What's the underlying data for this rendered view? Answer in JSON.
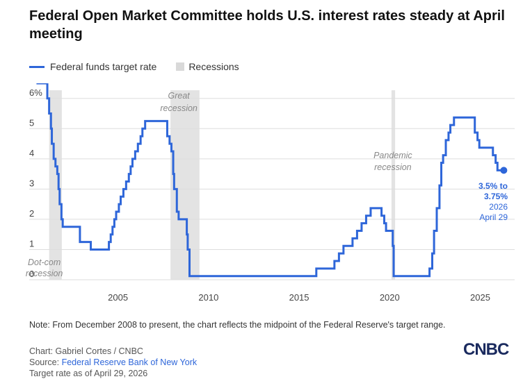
{
  "title": "Federal Open Market Committee holds U.S. interest rates steady at April meeting",
  "legend": {
    "series_label": "Federal funds target rate",
    "recession_label": "Recessions"
  },
  "colors": {
    "series": "#2e66d9",
    "recession": "#e3e3e3",
    "grid": "#dddddd"
  },
  "chart_data": {
    "type": "line",
    "series_name": "Federal funds target rate",
    "x_ticks": [
      2005,
      2010,
      2015,
      2020,
      2025
    ],
    "y_ticks": [
      0,
      1,
      2,
      3,
      4,
      5,
      6
    ],
    "y_tick_labels": [
      "0",
      "1",
      "2",
      "3",
      "4",
      "5",
      "6%"
    ],
    "xlim": [
      2000.1,
      2026.9
    ],
    "ylim": [
      0,
      6.5
    ],
    "grid": "horizontal",
    "legend_position": "top-left",
    "recessions": [
      {
        "start": 2001.2,
        "end": 2001.9,
        "label_lines": [
          "Dot-com",
          "recession"
        ],
        "label_position": "bottom"
      },
      {
        "start": 2007.9,
        "end": 2009.5,
        "label_lines": [
          "Great",
          "recession"
        ],
        "label_position": "top"
      },
      {
        "start": 2020.1,
        "end": 2020.3,
        "label_lines": [
          "Pandemic",
          "recession"
        ],
        "label_position": "middle"
      }
    ],
    "points": [
      [
        2000.5,
        6.5
      ],
      [
        2001.0,
        6.5
      ],
      [
        2001.1,
        6.0
      ],
      [
        2001.2,
        5.5
      ],
      [
        2001.3,
        5.0
      ],
      [
        2001.35,
        4.5
      ],
      [
        2001.45,
        4.0
      ],
      [
        2001.55,
        3.75
      ],
      [
        2001.65,
        3.5
      ],
      [
        2001.72,
        3.0
      ],
      [
        2001.78,
        2.5
      ],
      [
        2001.88,
        2.0
      ],
      [
        2001.95,
        1.75
      ],
      [
        2002.9,
        1.25
      ],
      [
        2003.5,
        1.0
      ],
      [
        2004.5,
        1.25
      ],
      [
        2004.6,
        1.5
      ],
      [
        2004.7,
        1.75
      ],
      [
        2004.8,
        2.0
      ],
      [
        2004.9,
        2.25
      ],
      [
        2005.05,
        2.5
      ],
      [
        2005.15,
        2.75
      ],
      [
        2005.3,
        3.0
      ],
      [
        2005.45,
        3.25
      ],
      [
        2005.6,
        3.5
      ],
      [
        2005.7,
        3.75
      ],
      [
        2005.8,
        4.0
      ],
      [
        2005.95,
        4.25
      ],
      [
        2006.1,
        4.5
      ],
      [
        2006.25,
        4.75
      ],
      [
        2006.35,
        5.0
      ],
      [
        2006.5,
        5.25
      ],
      [
        2007.7,
        5.25
      ],
      [
        2007.72,
        4.75
      ],
      [
        2007.85,
        4.5
      ],
      [
        2007.95,
        4.25
      ],
      [
        2008.05,
        3.5
      ],
      [
        2008.1,
        3.0
      ],
      [
        2008.25,
        2.25
      ],
      [
        2008.35,
        2.0
      ],
      [
        2008.8,
        1.5
      ],
      [
        2008.85,
        1.0
      ],
      [
        2008.95,
        0.12
      ],
      [
        2015.95,
        0.37
      ],
      [
        2016.95,
        0.62
      ],
      [
        2017.2,
        0.87
      ],
      [
        2017.45,
        1.12
      ],
      [
        2017.95,
        1.37
      ],
      [
        2018.2,
        1.62
      ],
      [
        2018.45,
        1.87
      ],
      [
        2018.7,
        2.12
      ],
      [
        2018.95,
        2.37
      ],
      [
        2019.55,
        2.12
      ],
      [
        2019.7,
        1.87
      ],
      [
        2019.8,
        1.62
      ],
      [
        2020.17,
        1.12
      ],
      [
        2020.22,
        0.12
      ],
      [
        2022.2,
        0.37
      ],
      [
        2022.35,
        0.87
      ],
      [
        2022.45,
        1.62
      ],
      [
        2022.6,
        2.37
      ],
      [
        2022.75,
        3.12
      ],
      [
        2022.85,
        3.87
      ],
      [
        2022.95,
        4.12
      ],
      [
        2023.1,
        4.62
      ],
      [
        2023.25,
        4.87
      ],
      [
        2023.35,
        5.12
      ],
      [
        2023.55,
        5.37
      ],
      [
        2024.7,
        4.87
      ],
      [
        2024.85,
        4.62
      ],
      [
        2024.95,
        4.37
      ],
      [
        2025.7,
        4.12
      ],
      [
        2025.85,
        3.87
      ],
      [
        2025.95,
        3.62
      ],
      [
        2026.3,
        3.62
      ]
    ],
    "last_value": {
      "x": 2026.3,
      "y": 3.62,
      "label_bold": [
        "3.5% to",
        "3.75%"
      ],
      "label_date": [
        "2026",
        "April 29"
      ]
    }
  },
  "note": "Note: From December 2008 to present, the chart reflects the midpoint of the Federal Reserve's target range.",
  "credits": {
    "chart_by": "Chart: Gabriel Cortes / CNBC",
    "source_prefix": "Source: ",
    "source_link": "Federal Reserve Bank of New York",
    "target_rate_as_of": "Target rate as of April 29, 2026"
  },
  "logo": "CNBC"
}
